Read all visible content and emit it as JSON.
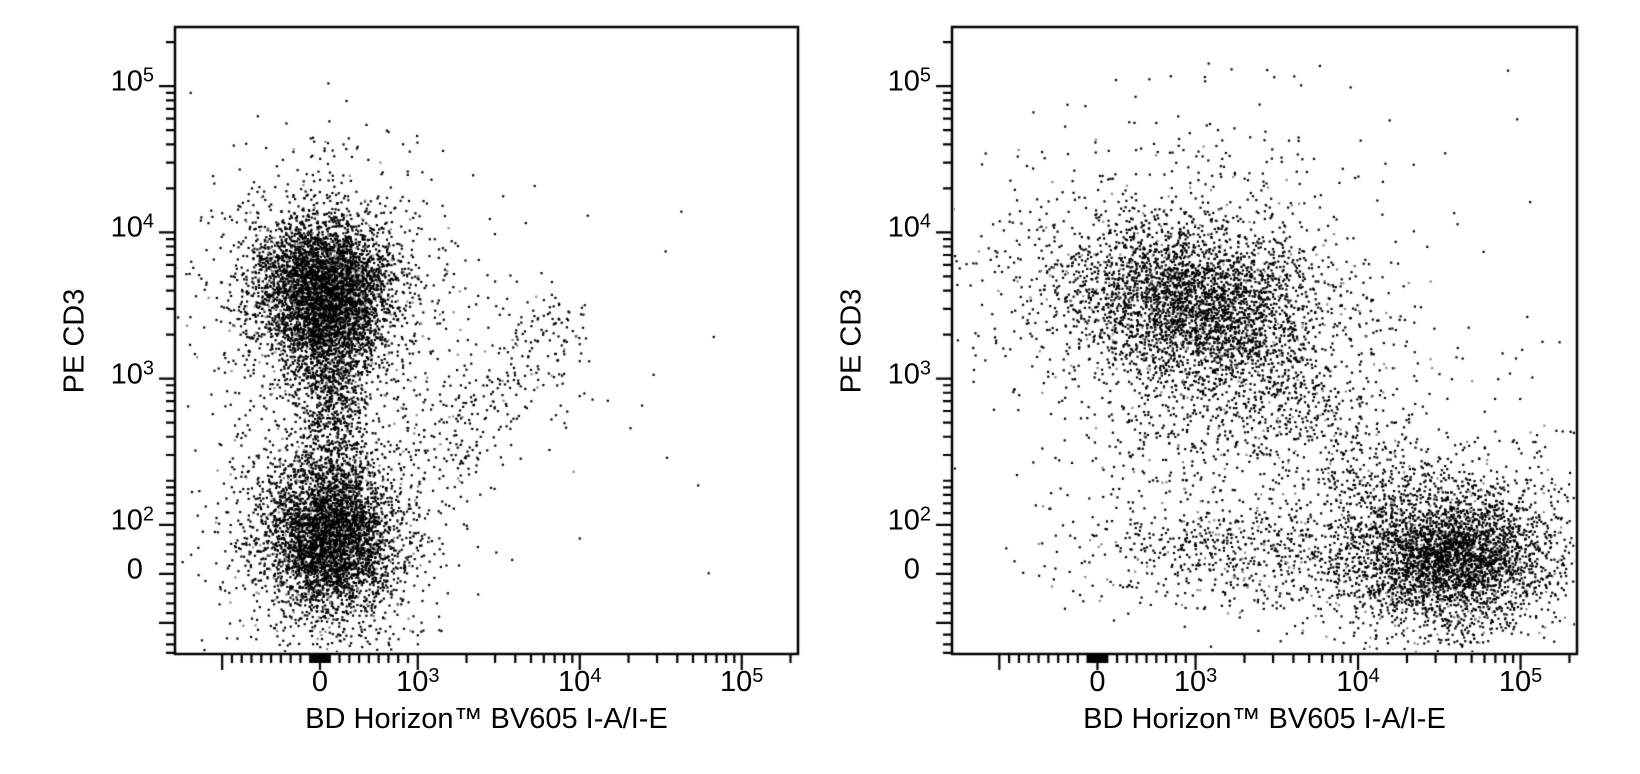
{
  "colors": {
    "background": "#ffffff",
    "frame": "#000000",
    "text": "#000000",
    "dot": "#000000",
    "dot_speckle": "#8a8a8a"
  },
  "chart_data": [
    {
      "type": "scatter",
      "panel": "left",
      "xlabel": "BD Horizon™ BV605 I-A/I-E",
      "ylabel": "PE CD3",
      "grid": false,
      "legend": null,
      "x_scale": {
        "type": "biexponential",
        "lin_max": 1000,
        "zero_frac": 0.2327,
        "lin_frac": 0.157,
        "decade_frac": 0.26,
        "domain": [
          -1970,
          222000
        ]
      },
      "y_scale": {
        "type": "biexponential",
        "lin_max": 100,
        "zero_frac": 0.1278,
        "lin_frac": 0.0783,
        "decade_frac": 0.2332,
        "domain": [
          -163,
          253000
        ]
      },
      "x_ticks": {
        "labeled": [
          {
            "v": 0,
            "text": "0"
          },
          {
            "v": 1000,
            "base": "10",
            "exp": "3"
          },
          {
            "v": 10000,
            "base": "10",
            "exp": "4"
          },
          {
            "v": 100000,
            "base": "10",
            "exp": "5"
          }
        ],
        "long_unlabeled": [
          -1000
        ],
        "minor": [
          -900,
          -800,
          -700,
          -600,
          -500,
          -400,
          -300,
          -200,
          -100,
          -90,
          -80,
          -70,
          -60,
          -50,
          -40,
          -30,
          -20,
          -10,
          10,
          20,
          30,
          40,
          50,
          60,
          70,
          80,
          90,
          100,
          200,
          300,
          400,
          500,
          600,
          700,
          800,
          900,
          2000,
          3000,
          4000,
          5000,
          6000,
          7000,
          8000,
          9000,
          20000,
          30000,
          40000,
          50000,
          60000,
          70000,
          80000,
          90000,
          200000
        ]
      },
      "y_ticks": {
        "labeled": [
          {
            "v": 0,
            "text": "0"
          },
          {
            "v": 100,
            "base": "10",
            "exp": "2"
          },
          {
            "v": 1000,
            "base": "10",
            "exp": "3"
          },
          {
            "v": 10000,
            "base": "10",
            "exp": "4"
          },
          {
            "v": 100000,
            "base": "10",
            "exp": "5"
          }
        ],
        "long_unlabeled": [
          -100
        ],
        "minor": [
          -160,
          -140,
          -120,
          -80,
          -60,
          -40,
          -20,
          20,
          40,
          60,
          80,
          120,
          140,
          160,
          180,
          200,
          300,
          400,
          500,
          600,
          700,
          800,
          900,
          2000,
          3000,
          4000,
          5000,
          6000,
          7000,
          8000,
          9000,
          20000,
          30000,
          40000,
          50000,
          60000,
          70000,
          80000,
          90000,
          200000
        ]
      },
      "seed": 3,
      "dot_size": 2.2,
      "speckle_fraction": 0.08,
      "populations": [
        {
          "name": "upper-cluster-core",
          "type": "gauss",
          "x": 50,
          "y": 4400,
          "sx_f": 0.052,
          "sy_f": 0.05,
          "rho": 0,
          "n": 3400
        },
        {
          "name": "upper-cluster-lower-taper",
          "type": "gauss",
          "x": 80,
          "y": 1700,
          "sx_f": 0.036,
          "sy_f": 0.048,
          "rho": 0,
          "n": 900
        },
        {
          "name": "upper-cluster-halo",
          "type": "gauss",
          "x": 50,
          "y": 3300,
          "sx_f": 0.095,
          "sy_f": 0.095,
          "rho": 0,
          "n": 1400
        },
        {
          "name": "sparse-above-upper-cluster",
          "type": "gauss",
          "x": 30,
          "y": 21000,
          "sx_f": 0.07,
          "sy_f": 0.06,
          "rho": 0,
          "n": 70
        },
        {
          "name": "neck-between-clusters",
          "type": "gauss",
          "x": 130,
          "y": 550,
          "sx_f": 0.027,
          "sy_f": 0.055,
          "rho": 0,
          "n": 420
        },
        {
          "name": "lower-cluster-core",
          "type": "gauss",
          "x": 100,
          "y": 80,
          "sx_f": 0.05,
          "sy_f": 0.06,
          "rho": 0,
          "n": 3400
        },
        {
          "name": "lower-cluster-halo",
          "type": "gauss",
          "x": 90,
          "y": 75,
          "sx_f": 0.085,
          "sy_f": 0.105,
          "rho": 0,
          "n": 1300
        },
        {
          "name": "diagonal-sparse-trail",
          "type": "band",
          "from": [
            1100,
            220
          ],
          "to": [
            8500,
            2800
          ],
          "width_f": 0.045,
          "n": 330
        },
        {
          "name": "scattered-events",
          "type": "uniform",
          "x_f": [
            0.45,
            0.95
          ],
          "y_f": [
            0.1,
            0.75
          ],
          "n": 28
        }
      ]
    },
    {
      "type": "scatter",
      "panel": "right",
      "xlabel": "BD Horizon™ BV605 I-A/I-E",
      "ylabel": "PE CD3",
      "grid": false,
      "legend": null,
      "x_scale": {
        "type": "biexponential",
        "lin_max": 1000,
        "zero_frac": 0.2327,
        "lin_frac": 0.157,
        "decade_frac": 0.26,
        "domain": [
          -1970,
          222000
        ]
      },
      "y_scale": {
        "type": "biexponential",
        "lin_max": 100,
        "zero_frac": 0.1278,
        "lin_frac": 0.0783,
        "decade_frac": 0.2332,
        "domain": [
          -163,
          253000
        ]
      },
      "x_ticks": {
        "labeled": [
          {
            "v": 0,
            "text": "0"
          },
          {
            "v": 1000,
            "base": "10",
            "exp": "3"
          },
          {
            "v": 10000,
            "base": "10",
            "exp": "4"
          },
          {
            "v": 100000,
            "base": "10",
            "exp": "5"
          }
        ],
        "long_unlabeled": [
          -1000
        ],
        "minor": [
          -900,
          -800,
          -700,
          -600,
          -500,
          -400,
          -300,
          -200,
          -100,
          -90,
          -80,
          -70,
          -60,
          -50,
          -40,
          -30,
          -20,
          -10,
          10,
          20,
          30,
          40,
          50,
          60,
          70,
          80,
          90,
          100,
          200,
          300,
          400,
          500,
          600,
          700,
          800,
          900,
          2000,
          3000,
          4000,
          5000,
          6000,
          7000,
          8000,
          9000,
          20000,
          30000,
          40000,
          50000,
          60000,
          70000,
          80000,
          90000,
          200000
        ]
      },
      "y_ticks": {
        "labeled": [
          {
            "v": 0,
            "text": "0"
          },
          {
            "v": 100,
            "base": "10",
            "exp": "2"
          },
          {
            "v": 1000,
            "base": "10",
            "exp": "3"
          },
          {
            "v": 10000,
            "base": "10",
            "exp": "4"
          },
          {
            "v": 100000,
            "base": "10",
            "exp": "5"
          }
        ],
        "long_unlabeled": [
          -100
        ],
        "minor": [
          -160,
          -140,
          -120,
          -80,
          -60,
          -40,
          -20,
          20,
          40,
          60,
          80,
          120,
          140,
          160,
          180,
          200,
          300,
          400,
          500,
          600,
          700,
          800,
          900,
          2000,
          3000,
          4000,
          5000,
          6000,
          7000,
          8000,
          9000,
          20000,
          30000,
          40000,
          50000,
          60000,
          70000,
          80000,
          90000,
          200000
        ]
      },
      "seed": 11,
      "dot_size": 2.2,
      "speckle_fraction": 0.08,
      "populations": [
        {
          "name": "left-cluster-core",
          "type": "gauss",
          "x": 950,
          "y": 3400,
          "sx_f": 0.095,
          "sy_f": 0.06,
          "rho": -0.15,
          "n": 2400
        },
        {
          "name": "left-cluster-halo",
          "type": "gauss",
          "x": 1000,
          "y": 3000,
          "sx_f": 0.165,
          "sy_f": 0.105,
          "rho": -0.2,
          "n": 1600
        },
        {
          "name": "below-left-cluster",
          "type": "gauss",
          "x": 1100,
          "y": 450,
          "sx_f": 0.11,
          "sy_f": 0.09,
          "rho": 0,
          "n": 420
        },
        {
          "name": "sparse-above-clusters",
          "type": "gauss",
          "x": 1600,
          "y": 26000,
          "sx_f": 0.13,
          "sy_f": 0.07,
          "rho": 0,
          "n": 90
        },
        {
          "name": "right-cluster-core",
          "type": "gauss",
          "x": 38000,
          "y": 35,
          "sx_f": 0.075,
          "sy_f": 0.05,
          "rho": 0,
          "n": 2600
        },
        {
          "name": "right-cluster-halo",
          "type": "gauss",
          "x": 30000,
          "y": 45,
          "sx_f": 0.13,
          "sy_f": 0.09,
          "rho": 0,
          "n": 1400
        },
        {
          "name": "low-y-band",
          "type": "gauss",
          "x": 2000,
          "y": 40,
          "sx_f": 0.14,
          "sy_f": 0.045,
          "rho": 0,
          "n": 640
        },
        {
          "name": "diagonal-sparse-trail",
          "type": "band",
          "from": [
            2200,
            1300
          ],
          "to": [
            22000,
            160
          ],
          "width_f": 0.05,
          "n": 380
        },
        {
          "name": "scattered-events",
          "type": "uniform",
          "x_f": [
            0.25,
            0.99
          ],
          "y_f": [
            0.05,
            0.95
          ],
          "n": 40
        }
      ]
    }
  ]
}
